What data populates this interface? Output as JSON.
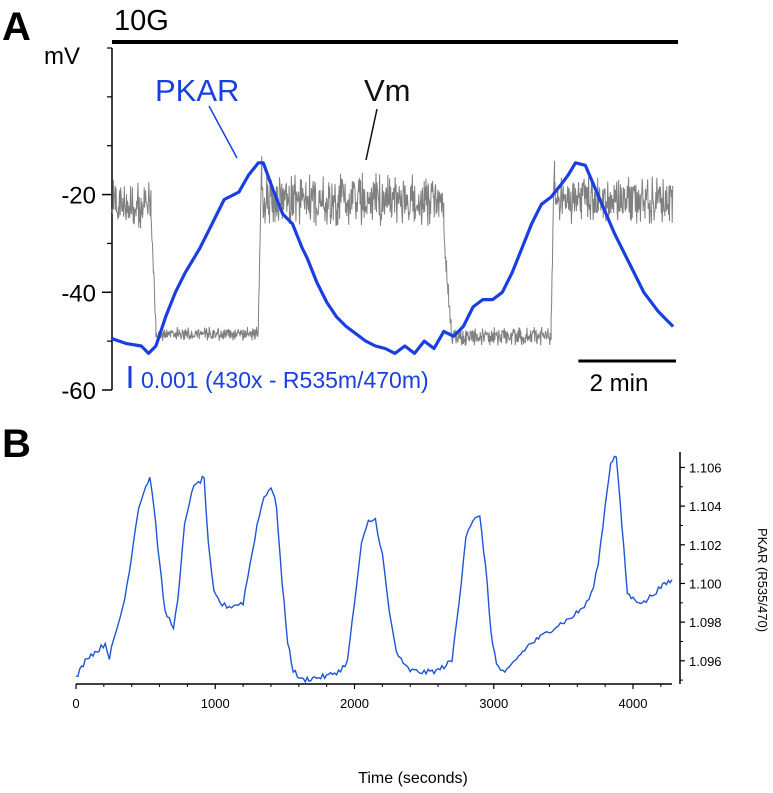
{
  "chart_data": [
    {
      "panel": "A",
      "type": "line",
      "stimulus_label": "10G",
      "y_unit": "mV",
      "y_ticks": [
        {
          "value": -20,
          "label": "-20"
        },
        {
          "value": -40,
          "label": "-40"
        },
        {
          "value": -60,
          "label": "-60"
        }
      ],
      "ylim": [
        -60,
        10
      ],
      "x_unit": "min",
      "xlim": [
        0,
        11.6
      ],
      "scale_bar_label": "2 min",
      "scale_bar_minutes": 2,
      "pkar_scale_label": "0.001 (430x - R535m/470m)",
      "series": [
        {
          "name": "PKAR",
          "label": "PKAR",
          "color": "#1a3fe0",
          "x": [
            0,
            0.3,
            0.6,
            0.75,
            0.9,
            1.1,
            1.3,
            1.5,
            1.8,
            2.0,
            2.3,
            2.6,
            2.8,
            3.0,
            3.1,
            3.3,
            3.5,
            3.7,
            3.9,
            4.0,
            4.2,
            4.4,
            4.6,
            4.8,
            5.0,
            5.2,
            5.4,
            5.6,
            5.8,
            6.0,
            6.2,
            6.4,
            6.6,
            6.8,
            7.0,
            7.2,
            7.4,
            7.6,
            7.8,
            8.0,
            8.2,
            8.4,
            8.6,
            8.8,
            9.0,
            9.2,
            9.35,
            9.5,
            9.7,
            10.0,
            10.3,
            10.6,
            10.9,
            11.2,
            11.5
          ],
          "y": [
            -49.5,
            -50.5,
            -51,
            -52.5,
            -51,
            -45,
            -40,
            -36,
            -31,
            -27,
            -21,
            -19.5,
            -16,
            -13.5,
            -13.5,
            -19,
            -24,
            -26,
            -31,
            -33,
            -38,
            -42,
            -45,
            -47,
            -48.5,
            -50,
            -51,
            -51.5,
            -52.5,
            -51,
            -52.5,
            -50,
            -51.5,
            -48,
            -49,
            -47,
            -43,
            -41.5,
            -41.5,
            -40,
            -36,
            -31,
            -26,
            -22,
            -20.5,
            -18,
            -16,
            -13.5,
            -14,
            -21,
            -28,
            -34,
            -40,
            -44,
            -47
          ]
        },
        {
          "name": "Vm",
          "label": "Vm",
          "color": "#808080",
          "segments": [
            {
              "kind": "plateau",
              "t0": 0.0,
              "t1": 0.8,
              "mean": -22,
              "amp": 5
            },
            {
              "kind": "transition",
              "t0": 0.8,
              "t1": 0.9,
              "v0": -25,
              "v1": -47
            },
            {
              "kind": "silent",
              "t0": 0.9,
              "t1": 3.0,
              "mean": -48.5,
              "amp": 1.5
            },
            {
              "kind": "transition",
              "t0": 3.0,
              "t1": 3.07,
              "v0": -46,
              "v1": -12
            },
            {
              "kind": "plateau",
              "t0": 3.07,
              "t1": 6.8,
              "mean": -21,
              "amp": 5.5
            },
            {
              "kind": "transition",
              "t0": 6.8,
              "t1": 6.95,
              "v0": -28,
              "v1": -47
            },
            {
              "kind": "silent",
              "t0": 6.95,
              "t1": 9.0,
              "mean": -49,
              "amp": 2
            },
            {
              "kind": "transition",
              "t0": 9.0,
              "t1": 9.07,
              "v0": -45,
              "v1": -12
            },
            {
              "kind": "plateau",
              "t0": 9.07,
              "t1": 11.5,
              "mean": -21,
              "amp": 5
            }
          ]
        }
      ]
    },
    {
      "panel": "B",
      "type": "line",
      "xlabel": "Time (seconds)",
      "ylabel": "PKAR (R535/470)",
      "xlim": [
        0,
        4280
      ],
      "ylim": [
        1.0948,
        1.1068
      ],
      "x_ticks": [
        0,
        1000,
        2000,
        3000,
        4000
      ],
      "y_ticks": [
        "1.096",
        "1.098",
        "1.100",
        "1.102",
        "1.104",
        "1.106"
      ],
      "series": [
        {
          "name": "PKAR",
          "color": "#1f55d6",
          "x": [
            0,
            80,
            150,
            210,
            240,
            300,
            350,
            400,
            450,
            500,
            530,
            560,
            600,
            640,
            700,
            730,
            780,
            830,
            880,
            920,
            950,
            990,
            1050,
            1100,
            1150,
            1200,
            1250,
            1300,
            1350,
            1400,
            1440,
            1480,
            1520,
            1560,
            1620,
            1700,
            1800,
            1900,
            1950,
            2000,
            2050,
            2100,
            2150,
            2200,
            2250,
            2300,
            2350,
            2400,
            2500,
            2600,
            2700,
            2750,
            2800,
            2850,
            2900,
            2940,
            2980,
            3020,
            3080,
            3150,
            3250,
            3350,
            3450,
            3550,
            3650,
            3700,
            3750,
            3800,
            3840,
            3880,
            3920,
            3960,
            4000,
            4080,
            4150,
            4200,
            4280
          ],
          "y": [
            1.0951,
            1.0962,
            1.0965,
            1.0969,
            1.0962,
            1.0978,
            1.0992,
            1.1015,
            1.104,
            1.105,
            1.1055,
            1.104,
            1.101,
            1.0985,
            1.0978,
            1.099,
            1.103,
            1.1048,
            1.1052,
            1.1055,
            1.102,
            1.0995,
            1.0989,
            1.0988,
            1.0989,
            1.099,
            1.101,
            1.103,
            1.1045,
            1.105,
            1.104,
            1.1,
            1.097,
            1.0955,
            1.095,
            1.0951,
            1.0952,
            1.0955,
            1.096,
            1.099,
            1.102,
            1.1032,
            1.1033,
            1.1015,
            1.0985,
            1.0965,
            1.0958,
            1.0955,
            1.0954,
            1.0955,
            1.096,
            1.099,
            1.1025,
            1.1033,
            1.1034,
            1.101,
            1.0975,
            1.0958,
            1.0953,
            1.096,
            1.0968,
            1.0973,
            1.0978,
            1.0982,
            1.0988,
            1.0994,
            1.101,
            1.104,
            1.1063,
            1.1066,
            1.103,
            1.0995,
            1.0992,
            1.099,
            1.0995,
            1.0998,
            1.1002
          ]
        }
      ]
    }
  ]
}
